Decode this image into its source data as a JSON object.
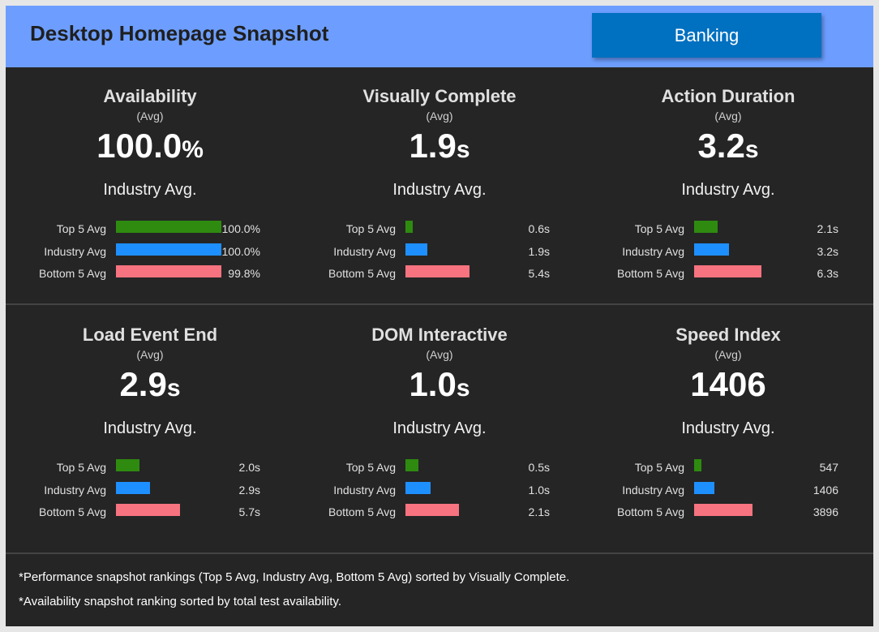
{
  "header": {
    "title": "Desktop Homepage Snapshot",
    "segment_button": "Banking",
    "background": "#6d9eff",
    "button_color": "#0070c0"
  },
  "colors": {
    "top5": "#2e8b10",
    "industry": "#1e8fff",
    "bottom5": "#f7737f"
  },
  "tiles": [
    {
      "title": "Availability",
      "sub": "(Avg)",
      "value": "100.0",
      "unit": "%",
      "industry_label": "Industry Avg.",
      "rows": [
        {
          "label": "Top 5 Avg",
          "value": "100.0%",
          "fraction": 1.0
        },
        {
          "label": "Industry Avg",
          "value": "100.0%",
          "fraction": 1.0
        },
        {
          "label": "Bottom 5 Avg",
          "value": "99.8%",
          "fraction": 0.998
        }
      ]
    },
    {
      "title": "Visually Complete",
      "sub": "(Avg)",
      "value": "1.9",
      "unit": "s",
      "industry_label": "Industry Avg.",
      "rows": [
        {
          "label": "Top 5 Avg",
          "value": "0.6s",
          "fraction": 0.07
        },
        {
          "label": "Industry Avg",
          "value": "1.9s",
          "fraction": 0.21
        },
        {
          "label": "Bottom 5 Avg",
          "value": "5.4s",
          "fraction": 0.61
        }
      ]
    },
    {
      "title": "Action Duration",
      "sub": "(Avg)",
      "value": "3.2",
      "unit": "s",
      "industry_label": "Industry Avg.",
      "rows": [
        {
          "label": "Top 5 Avg",
          "value": "2.1s",
          "fraction": 0.22
        },
        {
          "label": "Industry Avg",
          "value": "3.2s",
          "fraction": 0.33
        },
        {
          "label": "Bottom 5 Avg",
          "value": "6.3s",
          "fraction": 0.64
        }
      ]
    },
    {
      "title": "Load Event End",
      "sub": "(Avg)",
      "value": "2.9",
      "unit": "s",
      "industry_label": "Industry Avg.",
      "rows": [
        {
          "label": "Top 5 Avg",
          "value": "2.0s",
          "fraction": 0.22
        },
        {
          "label": "Industry Avg",
          "value": "2.9s",
          "fraction": 0.32
        },
        {
          "label": "Bottom 5 Avg",
          "value": "5.7s",
          "fraction": 0.61
        }
      ]
    },
    {
      "title": "DOM Interactive",
      "sub": "(Avg)",
      "value": "1.0",
      "unit": "s",
      "industry_label": "Industry Avg.",
      "rows": [
        {
          "label": "Top 5 Avg",
          "value": "0.5s",
          "fraction": 0.12
        },
        {
          "label": "Industry Avg",
          "value": "1.0s",
          "fraction": 0.24
        },
        {
          "label": "Bottom 5 Avg",
          "value": "2.1s",
          "fraction": 0.51
        }
      ]
    },
    {
      "title": "Speed Index",
      "sub": "(Avg)",
      "value": "1406",
      "unit": "",
      "industry_label": "Industry Avg.",
      "rows": [
        {
          "label": "Top 5 Avg",
          "value": "547",
          "fraction": 0.07
        },
        {
          "label": "Industry Avg",
          "value": "1406",
          "fraction": 0.19
        },
        {
          "label": "Bottom 5 Avg",
          "value": "3896",
          "fraction": 0.55
        }
      ]
    }
  ],
  "footer": {
    "note1": "*Performance snapshot rankings (Top 5 Avg, Industry Avg, Bottom 5 Avg) sorted by Visually Complete.",
    "note2": "*Availability snapshot ranking sorted by total test availability."
  }
}
